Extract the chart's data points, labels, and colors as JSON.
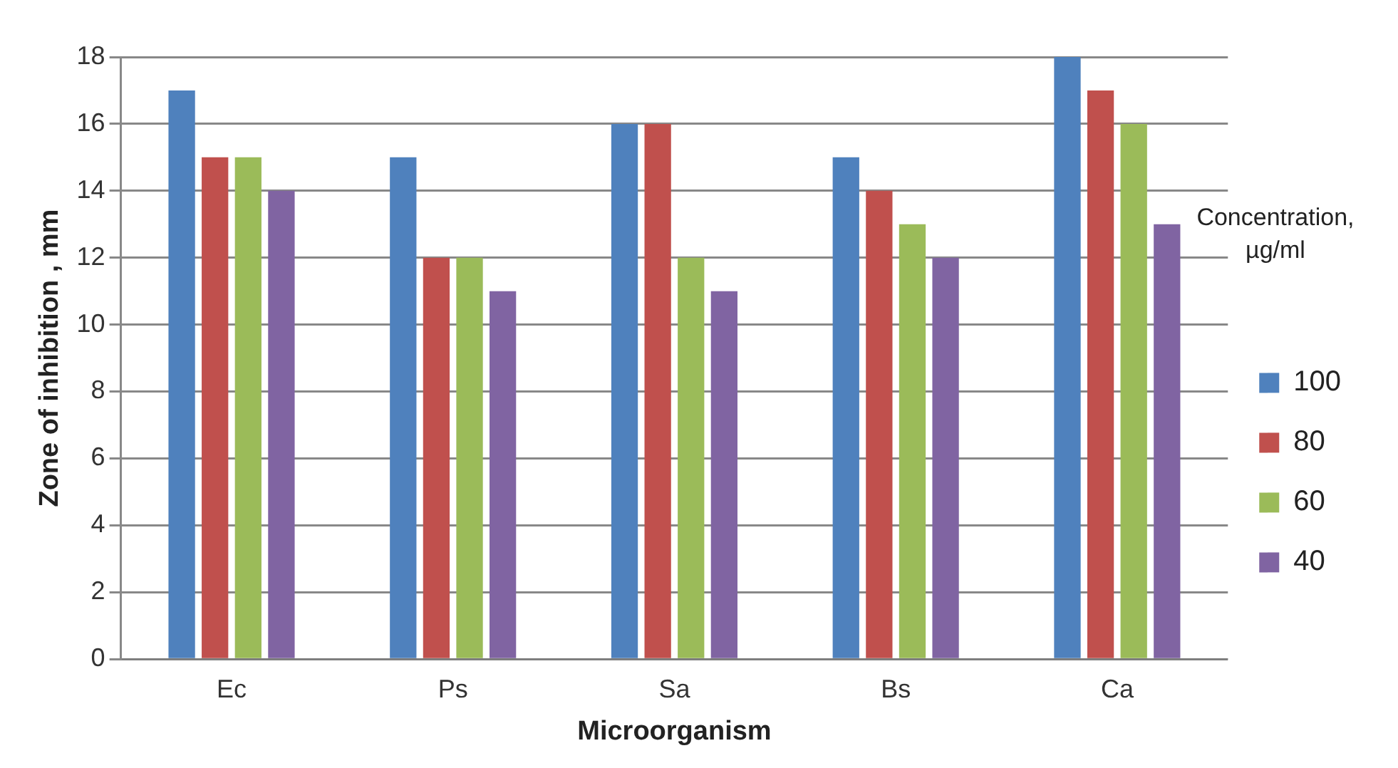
{
  "chart_data": {
    "type": "bar",
    "xlabel": "Microorganism",
    "ylabel": "Zone of inhibition , mm",
    "legend_title": "Concentration, µg/ml",
    "categories": [
      "Ec",
      "Ps",
      "Sa",
      "Bs",
      "Ca"
    ],
    "series": [
      {
        "name": "100",
        "color": "#4f81bd",
        "values": [
          17,
          15,
          16,
          15,
          18
        ]
      },
      {
        "name": "80",
        "color": "#c0504d",
        "values": [
          15,
          12,
          16,
          14,
          17
        ]
      },
      {
        "name": "60",
        "color": "#9bbb59",
        "values": [
          15,
          12,
          12,
          13,
          16
        ]
      },
      {
        "name": "40",
        "color": "#8064a2",
        "values": [
          14,
          11,
          11,
          12,
          13
        ]
      }
    ],
    "ylim": [
      0,
      18
    ],
    "yticks": [
      0,
      2,
      4,
      6,
      8,
      10,
      12,
      14,
      16,
      18
    ],
    "grid": "y",
    "legend": "right"
  }
}
